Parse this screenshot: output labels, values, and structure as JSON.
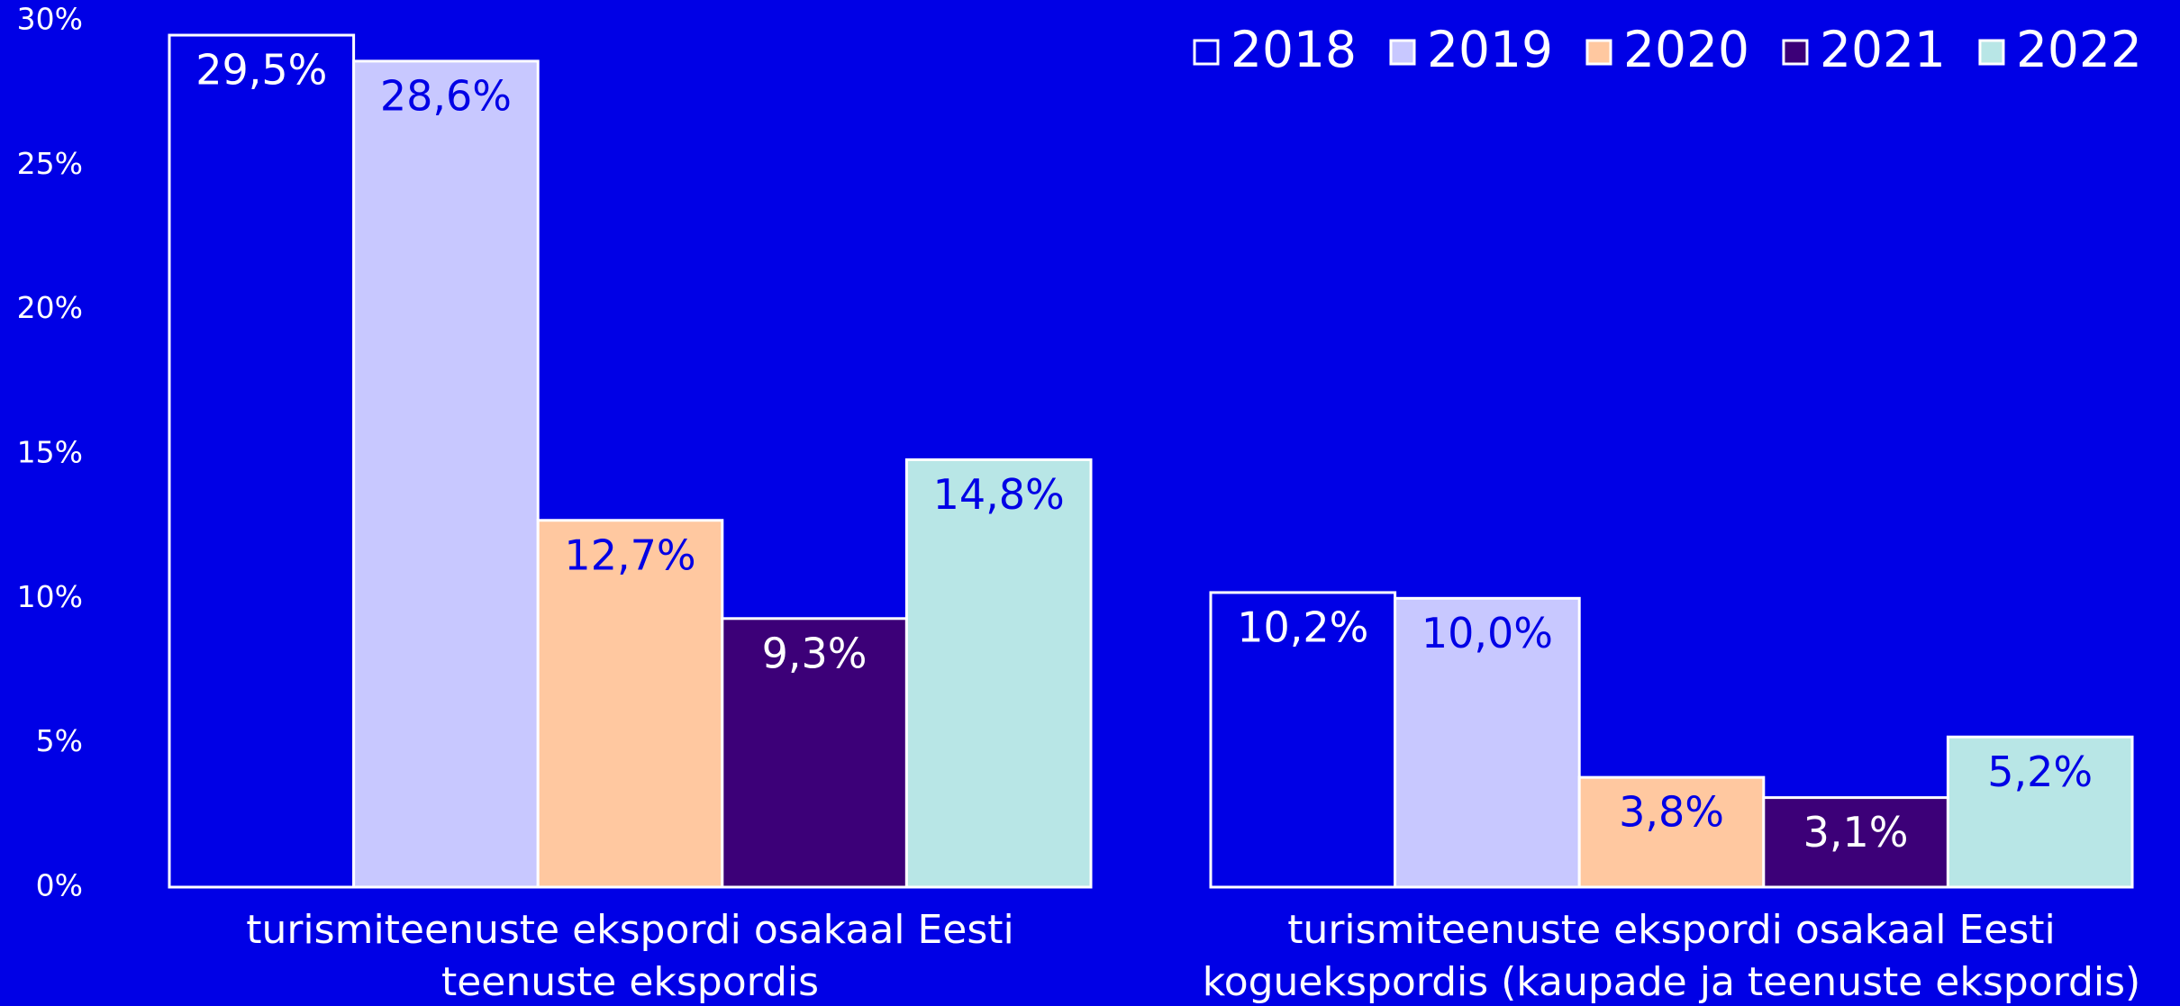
{
  "chart_data": {
    "type": "bar",
    "categories": [
      "turismiteenuste ekspordi osakaal Eesti teenuste ekspordis",
      "turismiteenuste ekspordi osakaal Eesti koguekspordis (kaupade ja teenuste ekspordis)"
    ],
    "series": [
      {
        "name": "2018",
        "color": "#0000e6",
        "values": [
          29.5,
          10.2
        ],
        "value_labels": [
          "29,5%",
          "10,2%"
        ]
      },
      {
        "name": "2019",
        "color": "#c8c8ff",
        "values": [
          28.6,
          10.0
        ],
        "value_labels": [
          "28,6%",
          "10,0%"
        ]
      },
      {
        "name": "2020",
        "color": "#ffc8a0",
        "values": [
          12.7,
          3.8
        ],
        "value_labels": [
          "12,7%",
          "3,8%"
        ]
      },
      {
        "name": "2021",
        "color": "#3c0078",
        "values": [
          9.3,
          3.1
        ],
        "value_labels": [
          "9,3%",
          "3,1%"
        ]
      },
      {
        "name": "2022",
        "color": "#b8e6e6",
        "values": [
          14.8,
          5.2
        ],
        "value_labels": [
          "14,8%",
          "5,2%"
        ]
      }
    ],
    "ylim": [
      0,
      30
    ],
    "yticks": [
      {
        "value": 0,
        "label": "0%"
      },
      {
        "value": 5,
        "label": "5%"
      },
      {
        "value": 10,
        "label": "10%"
      },
      {
        "value": 15,
        "label": "15%"
      },
      {
        "value": 20,
        "label": "20%"
      },
      {
        "value": 25,
        "label": "25%"
      },
      {
        "value": 30,
        "label": "30%"
      }
    ],
    "legend": "top-right",
    "grid": false
  }
}
